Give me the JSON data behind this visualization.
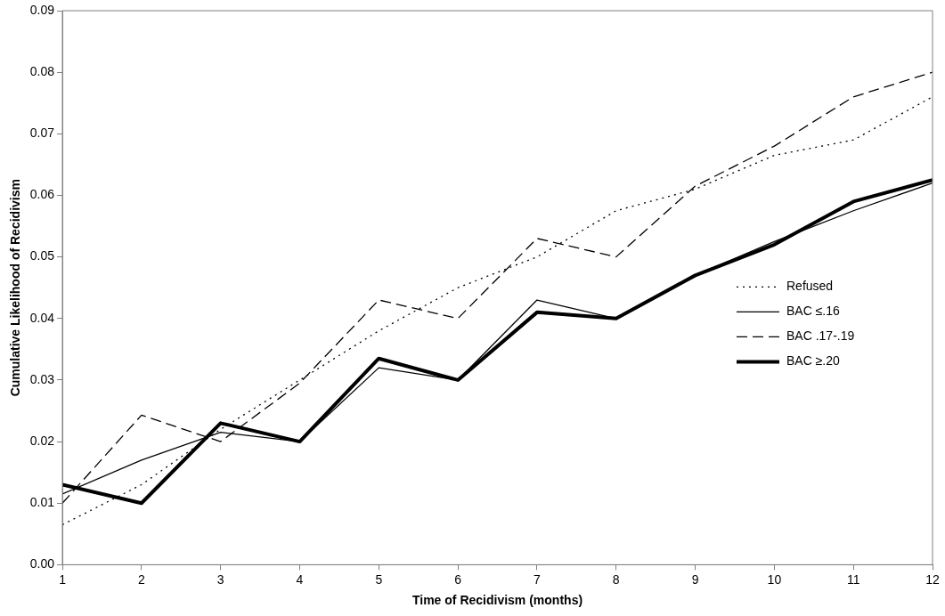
{
  "chart_data": {
    "type": "line",
    "xlabel": "Time of Recidivism (months)",
    "ylabel": "Cumulative Likelihood of Recidivism",
    "x": [
      1,
      2,
      3,
      4,
      5,
      6,
      7,
      8,
      9,
      10,
      11,
      12
    ],
    "series": [
      {
        "name": "Refused",
        "color": "#000000",
        "line_style": "dotted",
        "values": [
          0.0065,
          0.013,
          0.022,
          0.03,
          0.038,
          0.045,
          0.05,
          0.0575,
          0.061,
          0.0665,
          0.069,
          0.076
        ]
      },
      {
        "name": "BAC ≤.16",
        "color": "#000000",
        "line_style": "solid",
        "values": [
          0.0115,
          0.017,
          0.0215,
          0.02,
          0.032,
          0.03,
          0.043,
          0.04,
          0.047,
          0.0525,
          0.0575,
          0.062
        ]
      },
      {
        "name": "BAC .17-.19",
        "color": "#000000",
        "line_style": "dashed",
        "values": [
          0.01,
          0.0243,
          0.02,
          0.0295,
          0.043,
          0.04,
          0.053,
          0.05,
          0.0615,
          0.068,
          0.076,
          0.08
        ]
      },
      {
        "name": "BAC ≥.20",
        "color": "#000000",
        "line_style": "solid",
        "values": [
          0.013,
          0.01,
          0.023,
          0.02,
          0.0335,
          0.03,
          0.041,
          0.04,
          0.047,
          0.052,
          0.059,
          0.0625
        ]
      }
    ],
    "xlim": [
      1,
      12
    ],
    "xticks": [
      1,
      2,
      3,
      4,
      5,
      6,
      7,
      8,
      9,
      10,
      11,
      12
    ],
    "ylim": [
      0,
      0.09
    ],
    "yticks": [
      {
        "value": 0,
        "label": "0.00"
      },
      {
        "value": 0.01,
        "label": "0.01"
      },
      {
        "value": 0.02,
        "label": "0.02"
      },
      {
        "value": 0.03,
        "label": "0.03"
      },
      {
        "value": 0.04,
        "label": "0.04"
      },
      {
        "value": 0.05,
        "label": "0.05"
      },
      {
        "value": 0.06,
        "label": "0.06"
      },
      {
        "value": 0.07,
        "label": "0.07"
      },
      {
        "value": 0.08,
        "label": "0.08"
      },
      {
        "value": 0.09,
        "label": "0.09"
      }
    ],
    "grid": false,
    "legend": "right",
    "marker": "none"
  }
}
